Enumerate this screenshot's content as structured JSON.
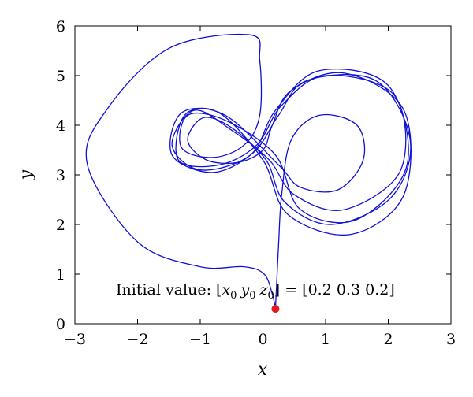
{
  "chart_data": {
    "type": "line",
    "title": "",
    "xlabel": "x",
    "ylabel": "y",
    "xlim": [
      -3,
      3
    ],
    "ylim": [
      0,
      6
    ],
    "xticks": [
      -3,
      -2,
      -1,
      0,
      1,
      2,
      3
    ],
    "yticks": [
      0,
      1,
      2,
      3,
      4,
      5,
      6
    ],
    "grid": false,
    "line_color": "#1010d8",
    "marker_color": "#e8191e",
    "initial_point": {
      "x": 0.2,
      "y": 0.3
    },
    "annotation": {
      "prefix": "Initial value: [",
      "x_sym": "x",
      "x_sub": "0",
      "y_sym": "y",
      "y_sub": "0",
      "z_sym": "z",
      "z_sub": "0",
      "suffix": "] = [0.2  0.3  0.2]"
    },
    "series": [
      {
        "values": [
          {
            "x": 0.2,
            "y": 0.3
          },
          {
            "x": 0.15,
            "y": 0.6
          },
          {
            "x": 0.02,
            "y": 1.0
          },
          {
            "x": -0.3,
            "y": 1.15
          },
          {
            "x": -1.0,
            "y": 1.15
          },
          {
            "x": -2.0,
            "y": 1.65
          },
          {
            "x": -2.8,
            "y": 3.2
          },
          {
            "x": -2.5,
            "y": 4.3
          },
          {
            "x": -1.5,
            "y": 5.55
          },
          {
            "x": -0.2,
            "y": 5.82
          },
          {
            "x": -0.05,
            "y": 5.3
          },
          {
            "x": -0.05,
            "y": 4.2
          },
          {
            "x": -0.3,
            "y": 3.6
          },
          {
            "x": -0.8,
            "y": 3.35
          },
          {
            "x": -1.3,
            "y": 3.55
          },
          {
            "x": -1.2,
            "y": 4.2
          },
          {
            "x": -0.6,
            "y": 4.1
          },
          {
            "x": 0.2,
            "y": 3.4
          },
          {
            "x": 0.6,
            "y": 2.3
          },
          {
            "x": 1.5,
            "y": 2.1
          },
          {
            "x": 2.3,
            "y": 3.2
          },
          {
            "x": 2.0,
            "y": 4.8
          },
          {
            "x": 0.9,
            "y": 5.1
          },
          {
            "x": 0.2,
            "y": 4.3
          },
          {
            "x": -0.2,
            "y": 3.4
          },
          {
            "x": -1.0,
            "y": 3.1
          },
          {
            "x": -1.45,
            "y": 3.6
          },
          {
            "x": -1.1,
            "y": 4.3
          },
          {
            "x": -0.5,
            "y": 3.9
          },
          {
            "x": 0.1,
            "y": 3.3
          },
          {
            "x": 0.5,
            "y": 2.6
          },
          {
            "x": 1.3,
            "y": 2.3
          },
          {
            "x": 2.2,
            "y": 3.1
          },
          {
            "x": 2.1,
            "y": 4.6
          },
          {
            "x": 1.0,
            "y": 5.0
          },
          {
            "x": 0.3,
            "y": 4.4
          },
          {
            "x": -0.1,
            "y": 3.6
          },
          {
            "x": -0.7,
            "y": 3.2
          },
          {
            "x": -1.35,
            "y": 3.3
          },
          {
            "x": -1.25,
            "y": 4.2
          },
          {
            "x": -0.7,
            "y": 4.25
          },
          {
            "x": 0.0,
            "y": 3.3
          },
          {
            "x": 0.4,
            "y": 2.2
          },
          {
            "x": 1.4,
            "y": 1.8
          },
          {
            "x": 2.25,
            "y": 2.6
          },
          {
            "x": 2.25,
            "y": 4.3
          },
          {
            "x": 1.3,
            "y": 5.05
          },
          {
            "x": 0.45,
            "y": 4.7
          },
          {
            "x": 0.15,
            "y": 4.0
          },
          {
            "x": 0.0,
            "y": 3.5
          },
          {
            "x": -0.4,
            "y": 3.25
          },
          {
            "x": -0.9,
            "y": 3.3
          },
          {
            "x": -1.2,
            "y": 3.7
          },
          {
            "x": -0.95,
            "y": 4.15
          },
          {
            "x": -0.5,
            "y": 3.95
          },
          {
            "x": 0.05,
            "y": 3.3
          },
          {
            "x": 0.35,
            "y": 2.45
          },
          {
            "x": 1.1,
            "y": 2.0
          },
          {
            "x": 2.05,
            "y": 2.55
          },
          {
            "x": 2.35,
            "y": 3.7
          },
          {
            "x": 1.8,
            "y": 4.9
          },
          {
            "x": 0.7,
            "y": 4.9
          },
          {
            "x": 0.25,
            "y": 4.2
          },
          {
            "x": -0.15,
            "y": 3.45
          },
          {
            "x": -0.8,
            "y": 3.05
          },
          {
            "x": -1.45,
            "y": 3.4
          },
          {
            "x": -1.3,
            "y": 4.25
          },
          {
            "x": -0.6,
            "y": 4.2
          },
          {
            "x": 0.25,
            "y": 3.2
          },
          {
            "x": 0.6,
            "y": 2.75
          },
          {
            "x": 1.2,
            "y": 2.7
          },
          {
            "x": 1.6,
            "y": 3.3
          },
          {
            "x": 1.5,
            "y": 4.0
          },
          {
            "x": 0.9,
            "y": 4.2
          },
          {
            "x": 0.45,
            "y": 3.7
          },
          {
            "x": 0.3,
            "y": 2.6
          },
          {
            "x": 0.25,
            "y": 1.6
          },
          {
            "x": 0.2,
            "y": 0.3
          }
        ]
      }
    ]
  }
}
